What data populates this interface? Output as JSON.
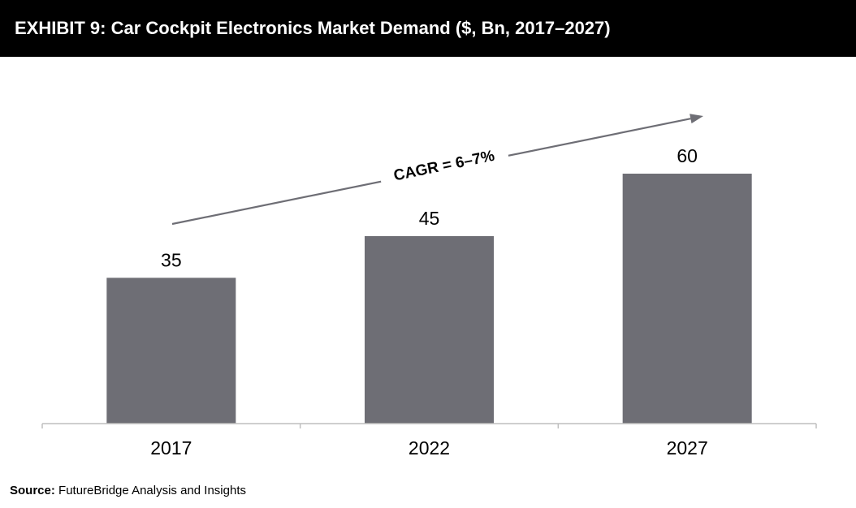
{
  "header": {
    "title": "EXHIBIT 9: Car Cockpit Electronics Market Demand ($, Bn, 2017–2027)"
  },
  "chart_data": {
    "type": "bar",
    "categories": [
      "2017",
      "2022",
      "2027"
    ],
    "values": [
      35,
      45,
      60
    ],
    "annotation": "CAGR = 6–7%",
    "ylim": [
      0,
      60
    ],
    "grid": false,
    "bar_color": "#6e6e75",
    "axis_color": "#bfbfbf",
    "arrow_color": "#6e6e75"
  },
  "footer": {
    "source_label": "Source:",
    "source_text": " FutureBridge Analysis and Insights"
  }
}
